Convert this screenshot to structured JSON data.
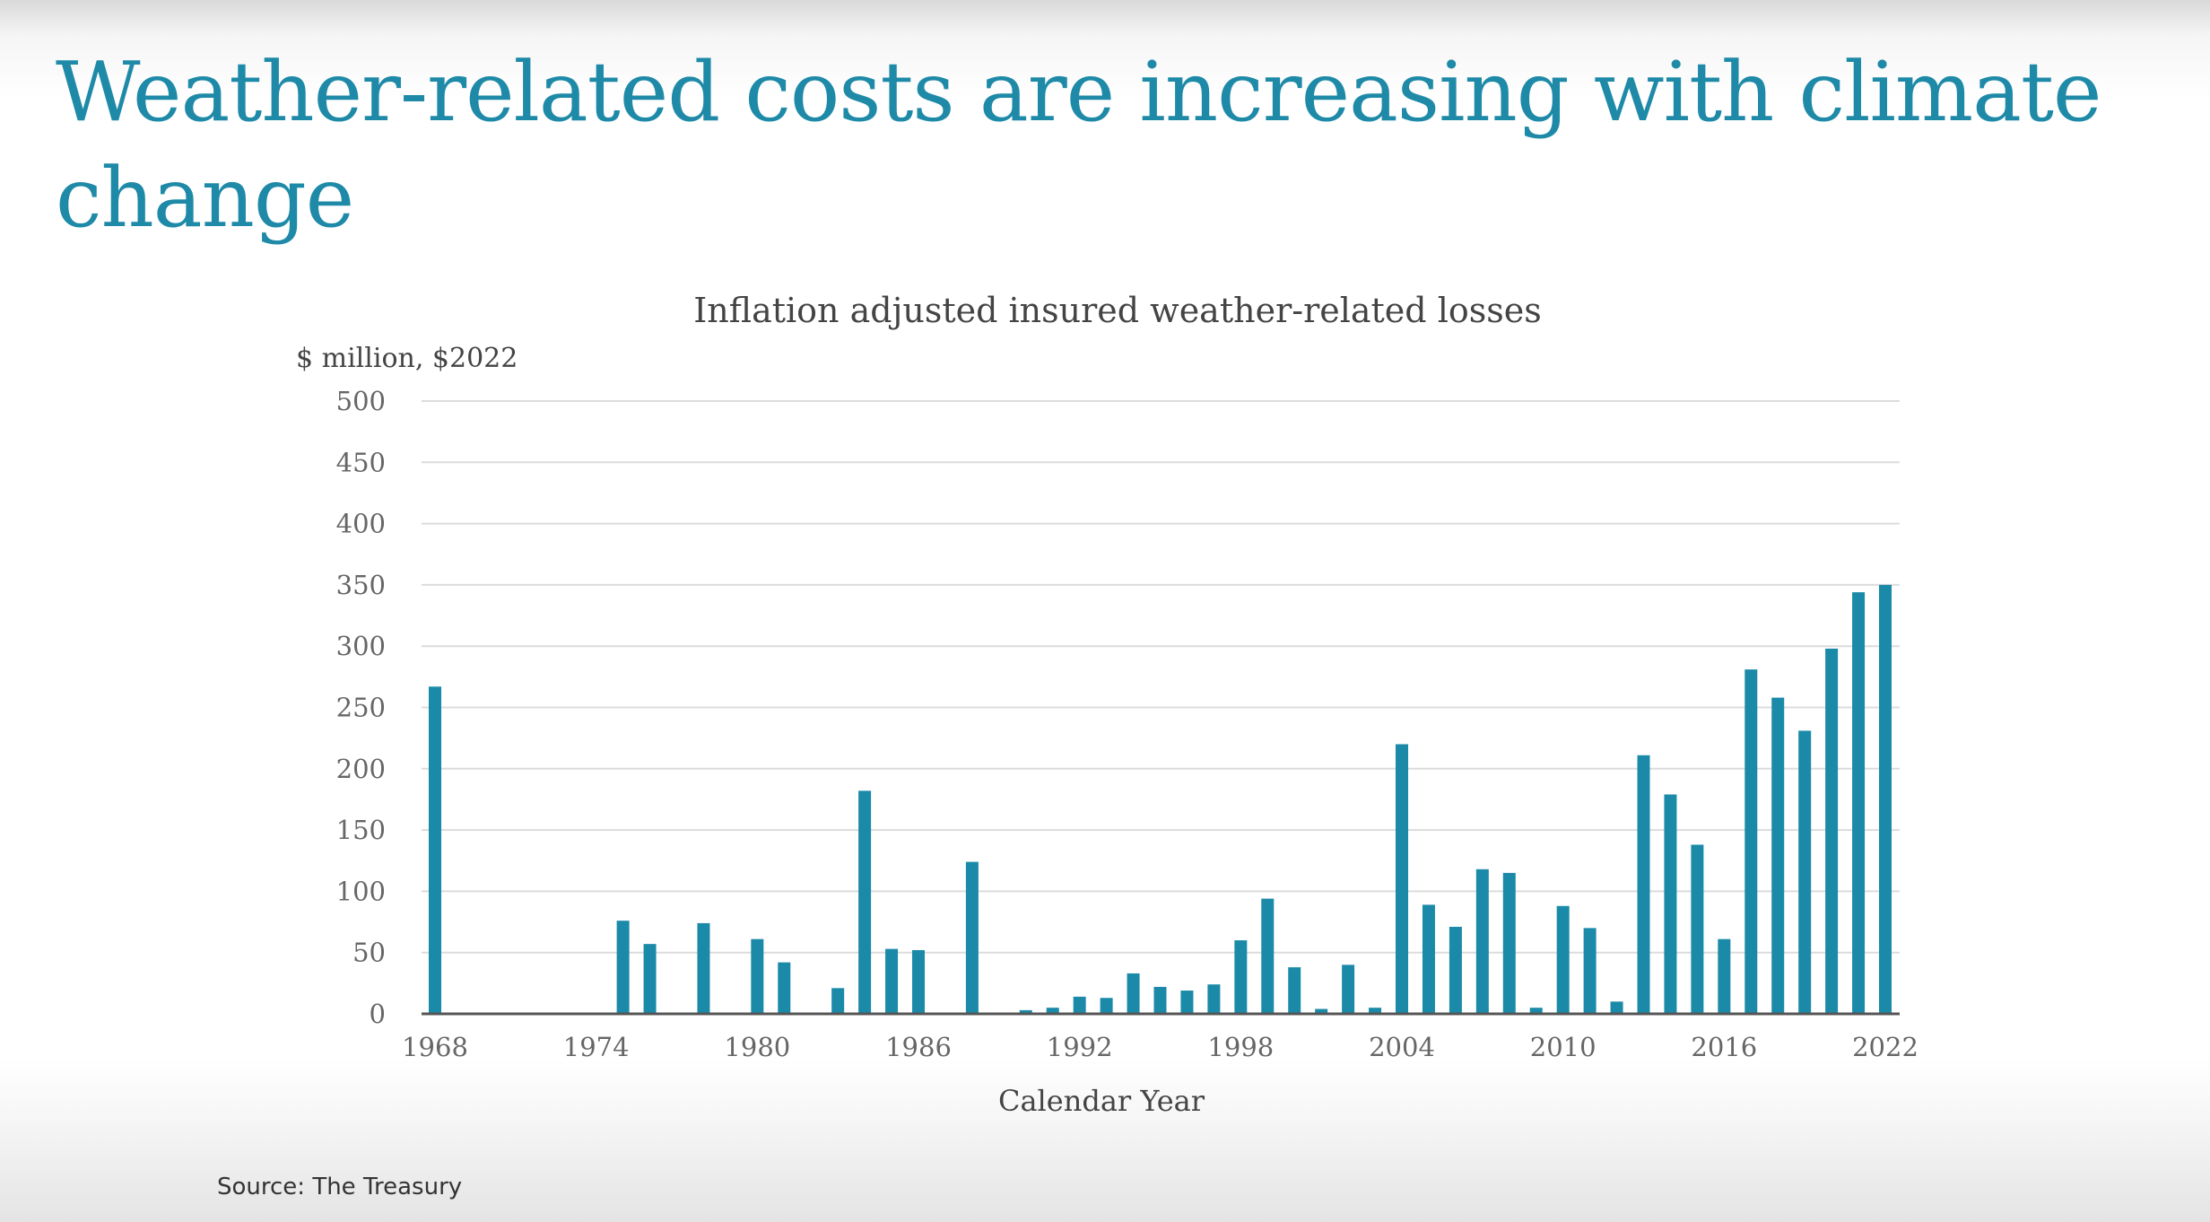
{
  "slide": {
    "title": "Weather-related costs are increasing with climate change",
    "source": "Source: The Treasury"
  },
  "colors": {
    "title": "#1e8aa8",
    "bar": "#1b8aa8",
    "grid": "#dcdcdc",
    "axis": "#555555"
  },
  "chart_data": {
    "type": "bar",
    "title": "Inflation adjusted insured weather-related losses",
    "ylabel": "$ million, $2022",
    "xlabel": "Calendar Year",
    "ylim": [
      0,
      500
    ],
    "yticks": [
      0,
      50,
      100,
      150,
      200,
      250,
      300,
      350,
      400,
      450,
      500
    ],
    "xticks": [
      1968,
      1974,
      1980,
      1986,
      1992,
      1998,
      2004,
      2010,
      2016,
      2022
    ],
    "grid": true,
    "legend": "none",
    "categories": [
      1968,
      1969,
      1970,
      1971,
      1972,
      1973,
      1974,
      1975,
      1976,
      1977,
      1978,
      1979,
      1980,
      1981,
      1982,
      1983,
      1984,
      1985,
      1986,
      1987,
      1988,
      1989,
      1990,
      1991,
      1992,
      1993,
      1994,
      1995,
      1996,
      1997,
      1998,
      1999,
      2000,
      2001,
      2002,
      2003,
      2004,
      2005,
      2006,
      2007,
      2008,
      2009,
      2010,
      2011,
      2012,
      2013,
      2014,
      2015,
      2016,
      2017,
      2018,
      2019,
      2020,
      2021,
      2022
    ],
    "values": [
      267,
      0,
      0,
      0,
      0,
      0,
      0,
      76,
      57,
      0,
      74,
      0,
      61,
      42,
      0,
      21,
      182,
      53,
      52,
      0,
      124,
      0,
      3,
      5,
      14,
      13,
      33,
      22,
      19,
      24,
      60,
      94,
      38,
      4,
      40,
      5,
      220,
      89,
      71,
      118,
      115,
      5,
      88,
      70,
      10,
      211,
      179,
      138,
      61,
      281,
      258,
      231,
      298,
      344,
      350
    ]
  }
}
